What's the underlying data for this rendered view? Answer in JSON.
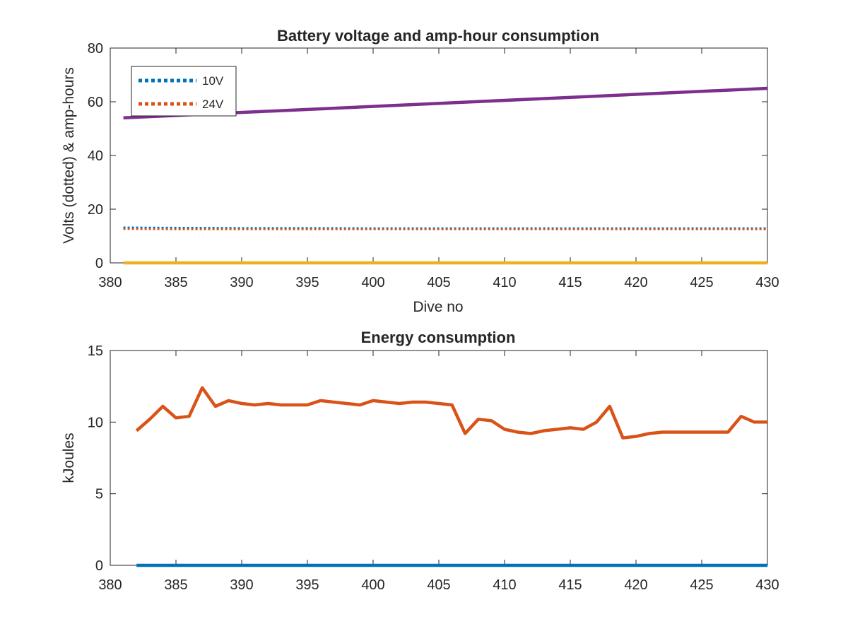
{
  "chart_data": [
    {
      "type": "line",
      "title": "Battery voltage and amp-hour consumption",
      "xlabel": "Dive no",
      "ylabel": "Volts (dotted) & amp-hours",
      "xlim": [
        380,
        430
      ],
      "ylim": [
        0,
        80
      ],
      "xticks": [
        "380",
        "385",
        "390",
        "395",
        "400",
        "405",
        "410",
        "415",
        "420",
        "425",
        "430"
      ],
      "yticks": [
        "0",
        "20",
        "40",
        "60",
        "80"
      ],
      "grid": false,
      "legend": {
        "placement": "top-left",
        "entries": [
          "10V",
          "24V"
        ]
      },
      "series": [
        {
          "name": "10V",
          "style": "dotted",
          "color": "#0072BD",
          "x": [
            381,
            385,
            390,
            395,
            400,
            405,
            410,
            415,
            420,
            425,
            430
          ],
          "y": [
            13.2,
            13.1,
            13.0,
            13.0,
            12.9,
            12.9,
            12.9,
            12.9,
            12.9,
            12.9,
            12.9
          ]
        },
        {
          "name": "24V",
          "style": "dotted",
          "color": "#D95319",
          "x": [
            381,
            385,
            390,
            395,
            400,
            405,
            410,
            415,
            420,
            425,
            430
          ],
          "y": [
            12.6,
            12.5,
            12.5,
            12.5,
            12.5,
            12.5,
            12.5,
            12.5,
            12.5,
            12.5,
            12.5
          ]
        },
        {
          "style": "solid",
          "color": "#7E2F8E",
          "x": [
            381,
            430
          ],
          "y": [
            54,
            65
          ]
        },
        {
          "style": "solid",
          "color": "#EDB120",
          "x": [
            381,
            430
          ],
          "y": [
            0,
            0
          ]
        }
      ]
    },
    {
      "type": "line",
      "title": "Energy consumption",
      "xlabel": "",
      "ylabel": "kJoules",
      "xlim": [
        380,
        430
      ],
      "ylim": [
        0,
        15
      ],
      "xticks": [
        "380",
        "385",
        "390",
        "395",
        "400",
        "405",
        "410",
        "415",
        "420",
        "425",
        "430"
      ],
      "yticks": [
        "0",
        "5",
        "10",
        "15"
      ],
      "grid": false,
      "series": [
        {
          "style": "solid",
          "color": "#D95319",
          "x": [
            382,
            383,
            384,
            385,
            386,
            387,
            388,
            389,
            390,
            391,
            392,
            393,
            394,
            395,
            396,
            397,
            398,
            399,
            400,
            401,
            402,
            403,
            404,
            405,
            406,
            407,
            408,
            409,
            410,
            411,
            412,
            413,
            414,
            415,
            416,
            417,
            418,
            419,
            420,
            421,
            422,
            423,
            424,
            425,
            426,
            427,
            428,
            429,
            430
          ],
          "y": [
            9.4,
            10.2,
            11.1,
            10.3,
            10.4,
            12.4,
            11.1,
            11.5,
            11.3,
            11.2,
            11.3,
            11.2,
            11.2,
            11.2,
            11.5,
            11.4,
            11.3,
            11.2,
            11.5,
            11.4,
            11.3,
            11.4,
            11.4,
            11.3,
            11.2,
            9.2,
            10.2,
            10.1,
            9.5,
            9.3,
            9.2,
            9.4,
            9.5,
            9.6,
            9.5,
            10.0,
            11.1,
            8.9,
            9.0,
            9.2,
            9.3,
            9.3,
            9.3,
            9.3,
            9.3,
            9.3,
            10.4,
            10.0,
            10.0
          ]
        },
        {
          "style": "solid",
          "color": "#0072BD",
          "x": [
            382,
            430
          ],
          "y": [
            0,
            0
          ]
        }
      ]
    }
  ]
}
